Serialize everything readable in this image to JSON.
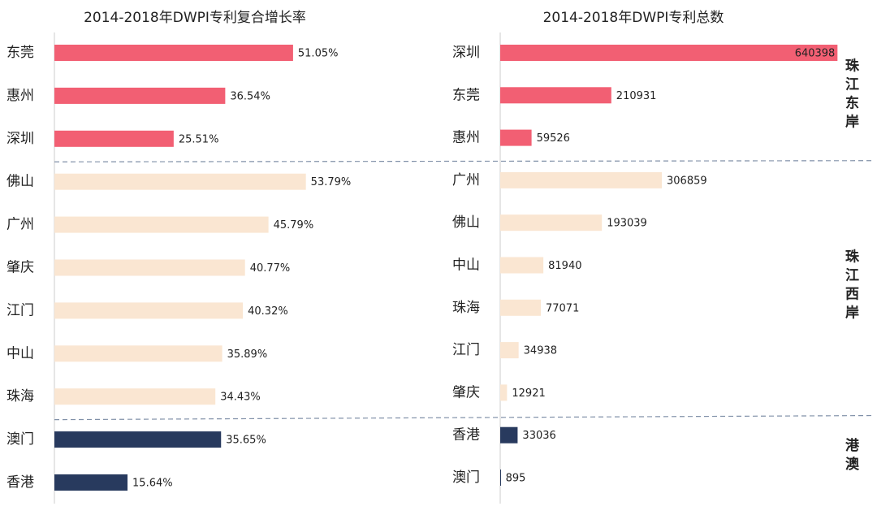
{
  "chart_data": [
    {
      "type": "bar",
      "orientation": "horizontal",
      "title": "2014-2018年DWPI专利复合增长率",
      "categories": [
        "东莞",
        "惠州",
        "深圳",
        "佛山",
        "广州",
        "肇庆",
        "江门",
        "中山",
        "珠海",
        "澳门",
        "香港"
      ],
      "values": [
        51.05,
        36.54,
        25.51,
        53.79,
        45.79,
        40.77,
        40.32,
        35.89,
        34.43,
        35.65,
        15.64
      ],
      "value_labels": [
        "51.05%",
        "36.54%",
        "25.51%",
        "53.79%",
        "45.79%",
        "40.77%",
        "40.32%",
        "35.89%",
        "34.43%",
        "35.65%",
        "15.64%"
      ],
      "colors": [
        "#f25f73",
        "#f25f73",
        "#f25f73",
        "#fae6d2",
        "#fae6d2",
        "#fae6d2",
        "#fae6d2",
        "#fae6d2",
        "#fae6d2",
        "#283a5e",
        "#283a5e"
      ],
      "xlim": [
        0,
        70
      ]
    },
    {
      "type": "bar",
      "orientation": "horizontal",
      "title": "2014-2018年DWPI专利总数",
      "categories": [
        "深圳",
        "东莞",
        "惠州",
        "广州",
        "佛山",
        "中山",
        "珠海",
        "江门",
        "肇庆",
        "香港",
        "澳门"
      ],
      "values": [
        640398,
        210931,
        59526,
        306859,
        193039,
        81940,
        77071,
        34938,
        12921,
        33036,
        895
      ],
      "colors": [
        "#f25f73",
        "#f25f73",
        "#f25f73",
        "#fae6d2",
        "#fae6d2",
        "#fae6d2",
        "#fae6d2",
        "#fae6d2",
        "#fae6d2",
        "#283a5e",
        "#283a5e"
      ],
      "xlim": [
        0,
        700000
      ]
    }
  ],
  "groups": [
    {
      "name": "珠江东岸",
      "color": "#f25f73",
      "text_color": "#f25f73"
    },
    {
      "name": "珠江西岸",
      "color": "#fae6d2",
      "text_color": "#a08a9a"
    },
    {
      "name": "港澳",
      "color": "#283a5e",
      "text_color": "#283a5e"
    }
  ]
}
